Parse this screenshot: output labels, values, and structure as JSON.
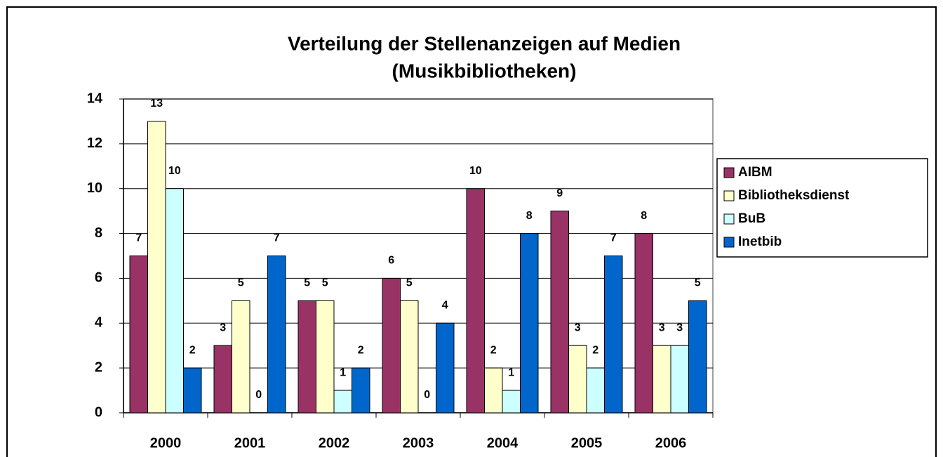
{
  "chart_data": {
    "type": "bar",
    "title": [
      "Verteilung der Stellenanzeigen auf Medien",
      "(Musikbibliotheken)"
    ],
    "categories": [
      "2000",
      "2001",
      "2002",
      "2003",
      "2004",
      "2005",
      "2006"
    ],
    "series": [
      {
        "name": "AIBM",
        "color": "#993366",
        "values": [
          7,
          3,
          5,
          6,
          10,
          9,
          8
        ]
      },
      {
        "name": "Bibliotheksdienst",
        "color": "#FFFFCC",
        "values": [
          13,
          5,
          5,
          5,
          2,
          3,
          3
        ]
      },
      {
        "name": "BuB",
        "color": "#CCFFFF",
        "values": [
          10,
          0,
          1,
          0,
          1,
          2,
          3
        ]
      },
      {
        "name": "Inetbib",
        "color": "#0066CC",
        "values": [
          2,
          7,
          2,
          4,
          8,
          7,
          5
        ]
      }
    ],
    "ylim": [
      0,
      14
    ],
    "yticks": [
      0,
      2,
      4,
      6,
      8,
      10,
      12,
      14
    ],
    "grid": true,
    "legend": "right"
  }
}
